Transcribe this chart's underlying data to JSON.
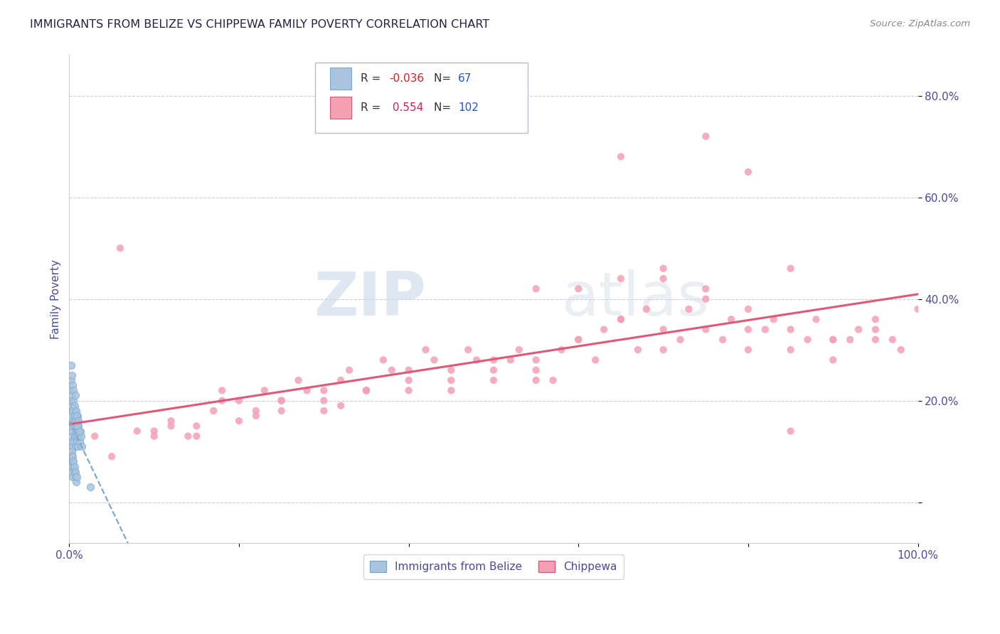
{
  "title": "IMMIGRANTS FROM BELIZE VS CHIPPEWA FAMILY POVERTY CORRELATION CHART",
  "source_text": "Source: ZipAtlas.com",
  "ylabel": "Family Poverty",
  "xlim": [
    0,
    1.0
  ],
  "ylim": [
    -0.08,
    0.88
  ],
  "yticks": [
    0.0,
    0.2,
    0.4,
    0.6,
    0.8
  ],
  "yticklabels_right": [
    "",
    "20.0%",
    "40.0%",
    "60.0%",
    "80.0%"
  ],
  "xticks": [
    0.0,
    0.2,
    0.4,
    0.6,
    0.8,
    1.0
  ],
  "xticklabels": [
    "0.0%",
    "",
    "",
    "",
    "",
    "100.0%"
  ],
  "legend_r1": "-0.036",
  "legend_n1": "67",
  "legend_r2": "0.554",
  "legend_n2": "102",
  "series1_label": "Immigrants from Belize",
  "series2_label": "Chippewa",
  "color1": "#aac4e0",
  "color2": "#f4a0b4",
  "line1_color": "#7aaad0",
  "line2_color": "#e05878",
  "watermark_zip": "ZIP",
  "watermark_atlas": "atlas",
  "title_color": "#222244",
  "axis_label_color": "#4a4a9a",
  "tick_color": "#4a4a9a",
  "background_color": "#ffffff",
  "grid_color": "#ccccdd",
  "belize_x": [
    0.001,
    0.002,
    0.002,
    0.003,
    0.003,
    0.003,
    0.004,
    0.004,
    0.004,
    0.005,
    0.005,
    0.005,
    0.006,
    0.006,
    0.007,
    0.007,
    0.007,
    0.008,
    0.008,
    0.009,
    0.009,
    0.01,
    0.01,
    0.01,
    0.011,
    0.011,
    0.012,
    0.013,
    0.014,
    0.015,
    0.001,
    0.002,
    0.002,
    0.003,
    0.003,
    0.004,
    0.004,
    0.005,
    0.005,
    0.006,
    0.006,
    0.007,
    0.007,
    0.008,
    0.009,
    0.01,
    0.011,
    0.012,
    0.002,
    0.002,
    0.003,
    0.003,
    0.004,
    0.004,
    0.005,
    0.006,
    0.007,
    0.008,
    0.003,
    0.004,
    0.005,
    0.006,
    0.007,
    0.009,
    0.002,
    0.003,
    0.025
  ],
  "belize_y": [
    0.12,
    0.15,
    0.1,
    0.18,
    0.13,
    0.16,
    0.14,
    0.11,
    0.19,
    0.15,
    0.12,
    0.17,
    0.13,
    0.16,
    0.14,
    0.11,
    0.18,
    0.13,
    0.15,
    0.12,
    0.16,
    0.14,
    0.11,
    0.17,
    0.13,
    0.15,
    0.12,
    0.14,
    0.13,
    0.11,
    0.22,
    0.2,
    0.24,
    0.19,
    0.21,
    0.23,
    0.18,
    0.2,
    0.22,
    0.17,
    0.19,
    0.21,
    0.16,
    0.18,
    0.17,
    0.15,
    0.16,
    0.14,
    0.08,
    0.07,
    0.09,
    0.06,
    0.08,
    0.05,
    0.07,
    0.06,
    0.05,
    0.04,
    0.1,
    0.09,
    0.08,
    0.07,
    0.06,
    0.05,
    0.27,
    0.25,
    0.03
  ],
  "chippewa_x": [
    0.03,
    0.05,
    0.06,
    0.08,
    0.1,
    0.12,
    0.14,
    0.15,
    0.17,
    0.18,
    0.2,
    0.22,
    0.23,
    0.25,
    0.27,
    0.28,
    0.3,
    0.32,
    0.33,
    0.35,
    0.37,
    0.38,
    0.4,
    0.42,
    0.43,
    0.45,
    0.47,
    0.48,
    0.5,
    0.52,
    0.53,
    0.55,
    0.57,
    0.58,
    0.6,
    0.62,
    0.63,
    0.65,
    0.67,
    0.68,
    0.7,
    0.72,
    0.73,
    0.75,
    0.77,
    0.78,
    0.8,
    0.82,
    0.83,
    0.85,
    0.87,
    0.88,
    0.9,
    0.92,
    0.93,
    0.95,
    0.97,
    0.98,
    1.0,
    0.1,
    0.15,
    0.2,
    0.25,
    0.3,
    0.35,
    0.4,
    0.45,
    0.5,
    0.55,
    0.6,
    0.65,
    0.7,
    0.75,
    0.8,
    0.85,
    0.9,
    0.95,
    0.55,
    0.65,
    0.75,
    0.8,
    0.85,
    0.7,
    0.18,
    0.25,
    0.35,
    0.45,
    0.55,
    0.65,
    0.75,
    0.85,
    0.95,
    0.3,
    0.4,
    0.5,
    0.6,
    0.7,
    0.8,
    0.9,
    0.12,
    0.22,
    0.32
  ],
  "chippewa_y": [
    0.13,
    0.09,
    0.5,
    0.14,
    0.13,
    0.16,
    0.13,
    0.15,
    0.18,
    0.22,
    0.2,
    0.18,
    0.22,
    0.2,
    0.24,
    0.22,
    0.2,
    0.24,
    0.26,
    0.22,
    0.28,
    0.26,
    0.22,
    0.3,
    0.28,
    0.26,
    0.3,
    0.28,
    0.24,
    0.28,
    0.3,
    0.28,
    0.24,
    0.3,
    0.32,
    0.28,
    0.34,
    0.36,
    0.3,
    0.38,
    0.34,
    0.32,
    0.38,
    0.34,
    0.32,
    0.36,
    0.3,
    0.34,
    0.36,
    0.34,
    0.32,
    0.36,
    0.28,
    0.32,
    0.34,
    0.32,
    0.32,
    0.3,
    0.38,
    0.14,
    0.13,
    0.16,
    0.2,
    0.18,
    0.22,
    0.24,
    0.22,
    0.26,
    0.24,
    0.42,
    0.44,
    0.46,
    0.42,
    0.38,
    0.3,
    0.32,
    0.34,
    0.42,
    0.68,
    0.72,
    0.65,
    0.14,
    0.44,
    0.2,
    0.18,
    0.22,
    0.24,
    0.26,
    0.36,
    0.4,
    0.46,
    0.36,
    0.22,
    0.26,
    0.28,
    0.32,
    0.3,
    0.34,
    0.32,
    0.15,
    0.17,
    0.19
  ]
}
